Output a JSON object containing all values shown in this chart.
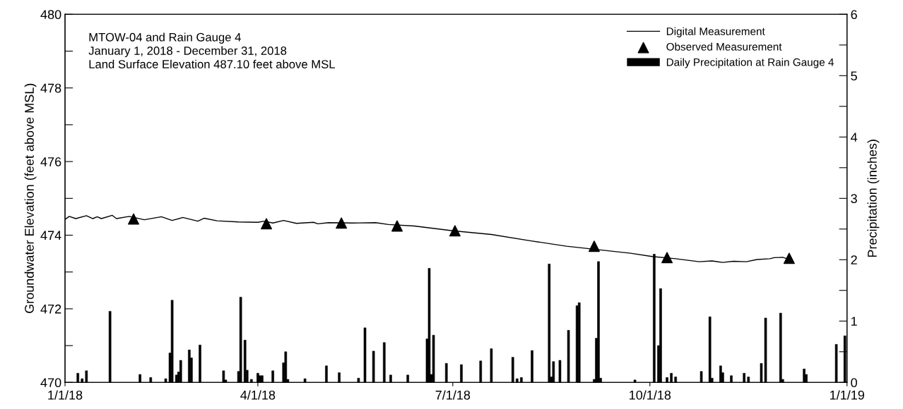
{
  "chart_data": {
    "type": "line",
    "ylabel": "Groundwater Elevation (feet above MSL)",
    "y2label": "Precipitation (inches)",
    "annotations": [
      "MTOW-04 and Rain Gauge 4",
      "January 1, 2018 - December 31, 2018",
      "Land Surface Elevation 487.10 feet above MSL"
    ],
    "xlim": [
      "2018-01-01",
      "2019-01-01"
    ],
    "xticks": [
      {
        "value": "2018-01-01",
        "label": "1/1/18"
      },
      {
        "value": "2018-04-01",
        "label": "4/1/18"
      },
      {
        "value": "2018-07-01",
        "label": "7/1/18"
      },
      {
        "value": "2018-10-01",
        "label": "10/1/18"
      },
      {
        "value": "2019-01-01",
        "label": "1/1/19"
      }
    ],
    "ylim": [
      470,
      480
    ],
    "yticks": [
      470,
      {
        "value": 471,
        "label": null
      },
      472,
      {
        "value": 473,
        "label": null
      },
      474,
      {
        "value": 475,
        "label": null
      },
      476,
      {
        "value": 477,
        "label": null
      },
      478,
      {
        "value": 479,
        "label": null
      },
      480
    ],
    "y2lim": [
      0,
      6
    ],
    "y2ticks": [
      0,
      {
        "value": 0.5,
        "label": null
      },
      1,
      {
        "value": 1.5,
        "label": null
      },
      2,
      {
        "value": 2.5,
        "label": null
      },
      3,
      {
        "value": 3.5,
        "label": null
      },
      4,
      {
        "value": 4.5,
        "label": null
      },
      5,
      {
        "value": 5.5,
        "label": null
      },
      6
    ],
    "grid": false,
    "legend": "top right",
    "series": [
      {
        "name": "Digital Measurement",
        "color": "#000000",
        "marker": "none",
        "line_style": "solid",
        "x": [
          "2018-01-01",
          "2018-01-03",
          "2018-01-06",
          "2018-01-11",
          "2018-01-14",
          "2018-01-16",
          "2018-01-18",
          "2018-01-23",
          "2018-01-25",
          "2018-01-31",
          "2018-02-07",
          "2018-02-15",
          "2018-02-20",
          "2018-02-25",
          "2018-03-04",
          "2018-03-07",
          "2018-03-13",
          "2018-03-23",
          "2018-04-01",
          "2018-04-04",
          "2018-04-08",
          "2018-04-13",
          "2018-04-19",
          "2018-04-27",
          "2018-04-29",
          "2018-05-04",
          "2018-05-15",
          "2018-05-26",
          "2018-06-01",
          "2018-06-13",
          "2018-07-01",
          "2018-07-19",
          "2018-08-06",
          "2018-08-23",
          "2018-09-22",
          "2018-10-02",
          "2018-10-13",
          "2018-10-24",
          "2018-10-30",
          "2018-11-04",
          "2018-11-09",
          "2018-11-15",
          "2018-11-20",
          "2018-11-26",
          "2018-11-28",
          "2018-12-02",
          "2018-12-04"
        ],
        "values": [
          474.43,
          474.51,
          474.45,
          474.53,
          474.45,
          474.5,
          474.45,
          474.54,
          474.45,
          474.51,
          474.42,
          474.5,
          474.4,
          474.48,
          474.38,
          474.46,
          474.39,
          474.36,
          474.35,
          474.38,
          474.33,
          474.4,
          474.32,
          474.35,
          474.31,
          474.34,
          474.33,
          474.34,
          474.29,
          474.25,
          474.12,
          474.02,
          473.85,
          473.7,
          473.51,
          473.42,
          473.36,
          473.28,
          473.3,
          473.26,
          473.29,
          473.28,
          473.34,
          473.36,
          473.39,
          473.4,
          473.36
        ]
      },
      {
        "name": "Observed Measurement",
        "type": "scatter",
        "color": "#000000",
        "marker": "triangle",
        "x": [
          "2018-02-02",
          "2018-04-05",
          "2018-05-10",
          "2018-06-05",
          "2018-07-02",
          "2018-09-05",
          "2018-10-09",
          "2018-12-05"
        ],
        "values": [
          474.44,
          474.31,
          474.33,
          474.25,
          474.12,
          473.7,
          473.39,
          473.37
        ]
      },
      {
        "name": "Daily Precipitation at Rain Gauge 4",
        "type": "bar",
        "axis": "y2",
        "color": "#000000",
        "x": [
          "2018-01-07",
          "2018-01-09",
          "2018-01-11",
          "2018-01-22",
          "2018-02-05",
          "2018-02-10",
          "2018-02-17",
          "2018-02-19",
          "2018-02-20",
          "2018-02-22",
          "2018-02-23",
          "2018-02-24",
          "2018-02-28",
          "2018-03-01",
          "2018-03-05",
          "2018-03-16",
          "2018-03-17",
          "2018-03-23",
          "2018-03-24",
          "2018-03-26",
          "2018-03-27",
          "2018-03-29",
          "2018-04-01",
          "2018-04-02",
          "2018-04-03",
          "2018-04-08",
          "2018-04-13",
          "2018-04-14",
          "2018-04-15",
          "2018-04-23",
          "2018-05-03",
          "2018-05-09",
          "2018-05-18",
          "2018-05-21",
          "2018-05-25",
          "2018-05-30",
          "2018-06-02",
          "2018-06-10",
          "2018-06-19",
          "2018-06-20",
          "2018-06-21",
          "2018-06-22",
          "2018-06-28",
          "2018-07-05",
          "2018-07-14",
          "2018-07-19",
          "2018-07-29",
          "2018-07-31",
          "2018-08-02",
          "2018-08-07",
          "2018-08-15",
          "2018-08-16",
          "2018-08-17",
          "2018-08-20",
          "2018-08-24",
          "2018-08-28",
          "2018-08-29",
          "2018-09-05",
          "2018-09-06",
          "2018-09-07",
          "2018-09-08",
          "2018-09-24",
          "2018-10-03",
          "2018-10-05",
          "2018-10-06",
          "2018-10-09",
          "2018-10-11",
          "2018-10-13",
          "2018-10-25",
          "2018-10-29",
          "2018-10-30",
          "2018-11-03",
          "2018-11-04",
          "2018-11-08",
          "2018-11-14",
          "2018-11-16",
          "2018-11-22",
          "2018-11-24",
          "2018-12-01",
          "2018-12-02",
          "2018-12-12",
          "2018-12-13",
          "2018-12-27",
          "2018-12-31"
        ],
        "values": [
          0.15,
          0.06,
          0.19,
          1.16,
          0.13,
          0.08,
          0.06,
          0.48,
          1.34,
          0.12,
          0.17,
          0.36,
          0.53,
          0.4,
          0.61,
          0.19,
          0.04,
          0.18,
          1.39,
          0.69,
          0.2,
          0.05,
          0.15,
          0.11,
          0.11,
          0.19,
          0.32,
          0.5,
          0.05,
          0.06,
          0.27,
          0.16,
          0.07,
          0.89,
          0.51,
          0.65,
          0.12,
          0.12,
          0.71,
          1.86,
          0.13,
          0.77,
          0.31,
          0.29,
          0.35,
          0.55,
          0.41,
          0.06,
          0.08,
          0.52,
          1.93,
          0.09,
          0.34,
          0.36,
          0.85,
          1.25,
          1.3,
          0.05,
          0.72,
          1.97,
          0.07,
          0.04,
          2.09,
          0.6,
          1.53,
          0.08,
          0.15,
          0.09,
          0.18,
          1.07,
          0.07,
          0.27,
          0.16,
          0.11,
          0.15,
          0.09,
          0.31,
          1.05,
          1.13,
          0.05,
          0.22,
          0.13,
          0.62,
          0.76
        ]
      }
    ]
  }
}
